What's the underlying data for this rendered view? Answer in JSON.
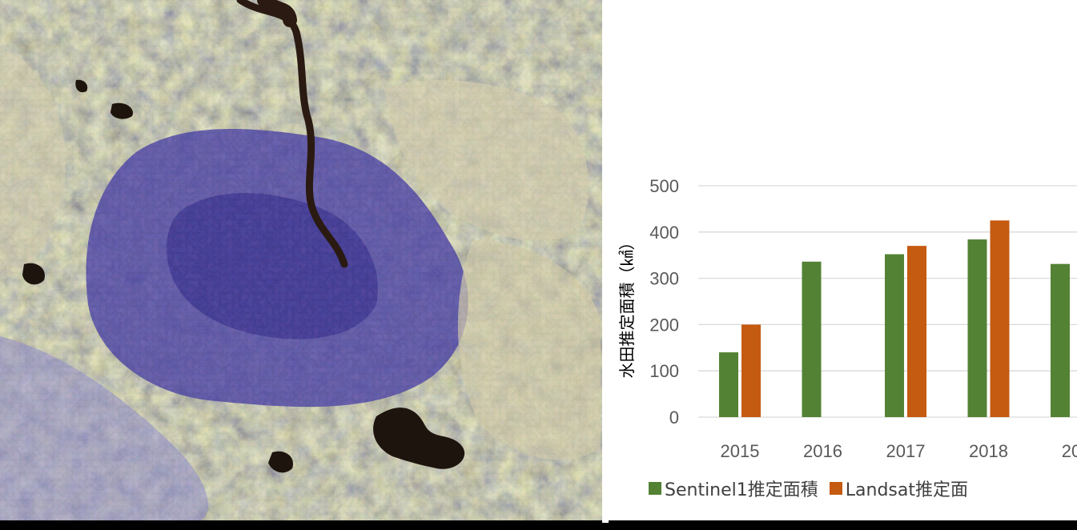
{
  "colors": {
    "sentinel": "#548235",
    "landsat": "#c55a11",
    "grid": "#d9d9d9",
    "tick": "#595959"
  },
  "image": {
    "description_icon": "satellite-radar-composite-image"
  },
  "chart_data": {
    "type": "bar",
    "title": "",
    "ylabel": "水田推定面積（㎢）",
    "xlabel": "",
    "categories": [
      "2015",
      "2016",
      "2017",
      "2018",
      "20"
    ],
    "series": [
      {
        "name": "Sentinel1推定面積",
        "values": [
          140,
          336,
          352,
          384,
          331
        ]
      },
      {
        "name": "Landsat推定面",
        "values": [
          200,
          null,
          370,
          425,
          null
        ]
      }
    ],
    "yticks": [
      "0",
      "100",
      "200",
      "300",
      "400",
      "500"
    ],
    "ylim": [
      0,
      500
    ],
    "grid": true,
    "legend_position": "bottom"
  }
}
